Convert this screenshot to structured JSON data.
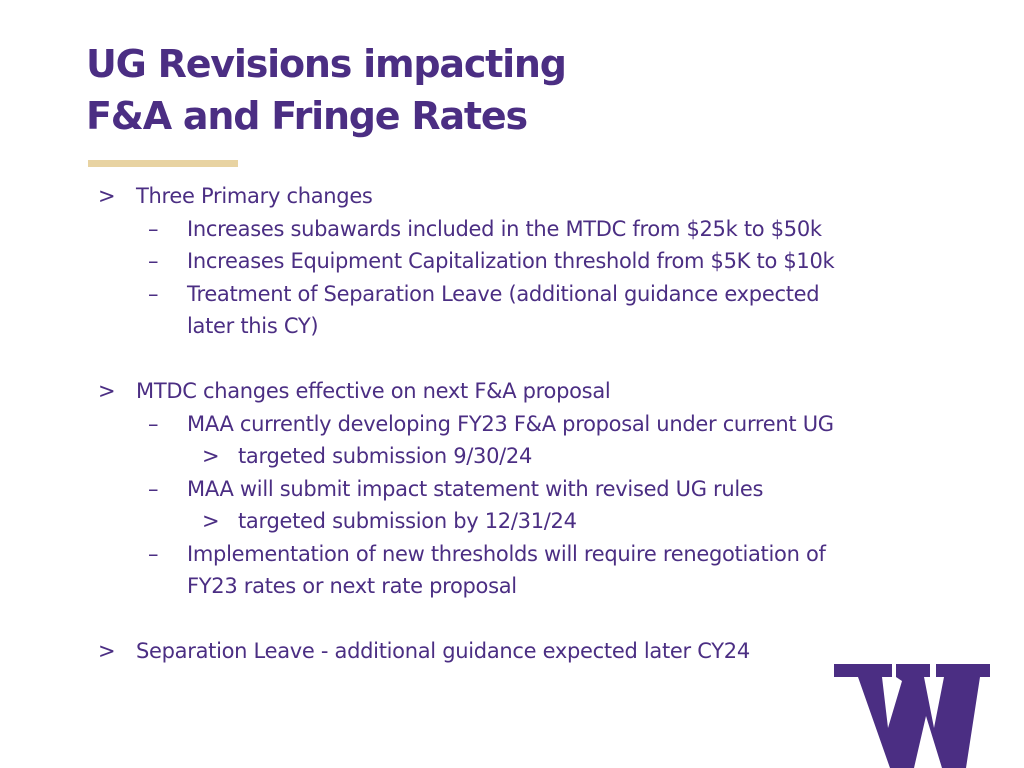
{
  "title": {
    "line1": "UG Revisions impacting",
    "line2": "F&A and Fringe Rates"
  },
  "bullets": {
    "l1_marker": ">",
    "l2_marker": "–",
    "l3_marker": ">"
  },
  "sections": [
    {
      "heading": "Three Primary changes",
      "items": [
        "Increases subawards included in the MTDC from $25k to $50k",
        "Increases Equipment Capitalization threshold from $5K to $10k",
        "Treatment of Separation Leave (additional guidance expected",
        "later this CY)"
      ]
    },
    {
      "heading": "MTDC changes effective on next  F&A proposal",
      "items": [
        "MAA currently developing FY23 F&A proposal under current UG",
        "targeted submission 9/30/24",
        "MAA will submit impact statement with revised UG rules",
        "targeted submission by 12/31/24",
        "Implementation of new thresholds will require renegotiation of",
        "FY23 rates or next rate proposal"
      ]
    },
    {
      "heading": "Separation Leave - additional guidance expected later CY24"
    }
  ],
  "logo": {
    "icon": "uw-w-logo-icon",
    "letter": "W"
  },
  "colors": {
    "primary": "#4b2e83",
    "accent_rule": "#e8d3a2"
  }
}
